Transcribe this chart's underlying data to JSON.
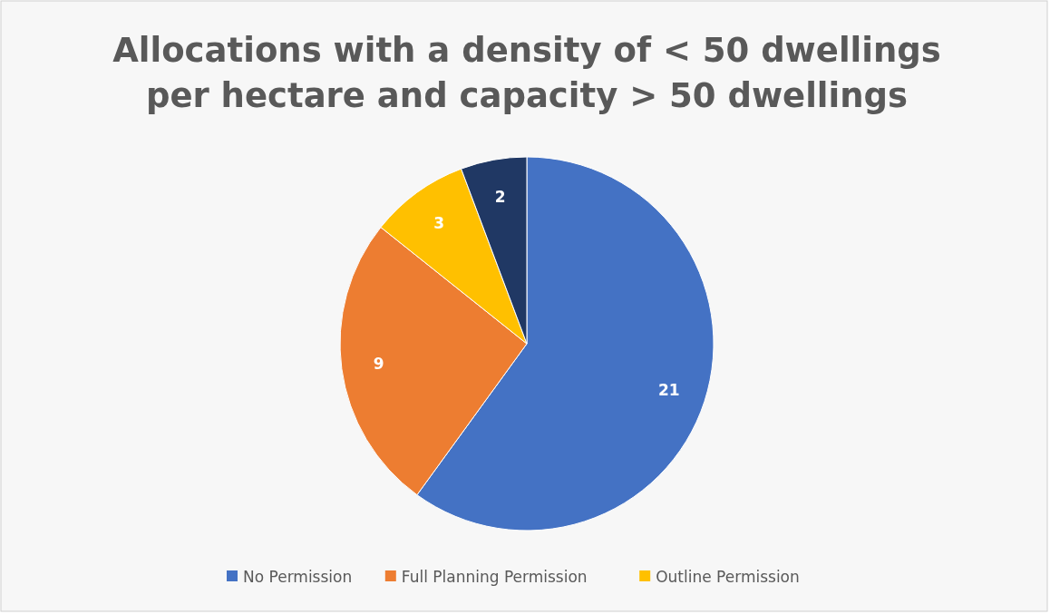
{
  "chart_data": {
    "type": "pie",
    "title": "Allocations with a density of < 50 dwellings per hectare and capacity > 50 dwellings",
    "categories": [
      "No Permission",
      "Full Planning Permission",
      "Outline Permission",
      null
    ],
    "values": [
      21,
      9,
      3,
      2
    ],
    "colors": [
      "#4472c4",
      "#ed7d31",
      "#ffc000",
      "#203864"
    ],
    "data_labels": true,
    "legend": "bottom"
  }
}
